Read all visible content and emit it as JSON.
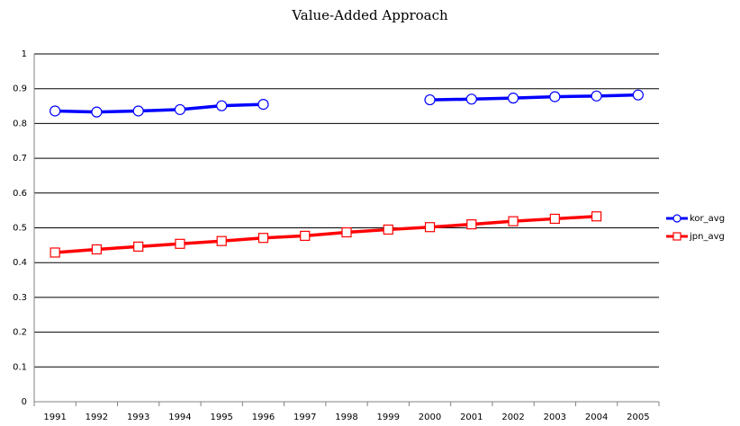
{
  "chart_data": {
    "type": "line",
    "title": "Value-Added Approach",
    "categories": [
      "1991",
      "1992",
      "1993",
      "1994",
      "1995",
      "1996",
      "1997",
      "1998",
      "1999",
      "2000",
      "2001",
      "2002",
      "2003",
      "2004",
      "2005"
    ],
    "series": [
      {
        "name": "kor_avg",
        "color": "#0000ff",
        "marker": "circle",
        "values": [
          0.836,
          0.833,
          0.836,
          0.84,
          0.851,
          0.855,
          null,
          null,
          null,
          0.868,
          0.87,
          0.873,
          0.877,
          0.879,
          0.882
        ]
      },
      {
        "name": "jpn_avg",
        "color": "#ff0000",
        "marker": "square",
        "values": [
          0.429,
          0.438,
          0.446,
          0.454,
          0.462,
          0.471,
          0.477,
          0.487,
          0.495,
          0.502,
          0.51,
          0.519,
          0.526,
          0.533,
          null
        ]
      }
    ],
    "ylim": [
      0,
      1
    ],
    "yticks": [
      0,
      0.1,
      0.2,
      0.3,
      0.4,
      0.5,
      0.6,
      0.7,
      0.8,
      0.9,
      1
    ],
    "grid": true,
    "legend": "right"
  }
}
